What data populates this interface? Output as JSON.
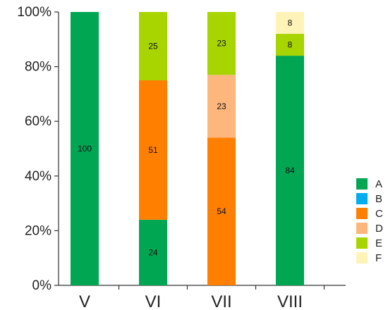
{
  "chart_data": {
    "type": "bar",
    "stacked": true,
    "categories": [
      "V",
      "VI",
      "VII",
      "VIII"
    ],
    "series": [
      {
        "name": "A",
        "color": "#00A651",
        "values": [
          100,
          24,
          0,
          84
        ]
      },
      {
        "name": "B",
        "color": "#00AEEF",
        "values": [
          0,
          0,
          0,
          0
        ]
      },
      {
        "name": "C",
        "color": "#FF7F00",
        "values": [
          0,
          51,
          54,
          0
        ]
      },
      {
        "name": "D",
        "color": "#FDB67B",
        "values": [
          0,
          0,
          23,
          0
        ]
      },
      {
        "name": "E",
        "color": "#A8D400",
        "values": [
          0,
          25,
          23,
          8
        ]
      },
      {
        "name": "F",
        "color": "#FFF3B8",
        "values": [
          0,
          0,
          0,
          8
        ]
      }
    ],
    "y_ticks": [
      "0%",
      "20%",
      "40%",
      "60%",
      "80%",
      "100%"
    ],
    "ylim": [
      0,
      100
    ],
    "legend_position": "right"
  }
}
